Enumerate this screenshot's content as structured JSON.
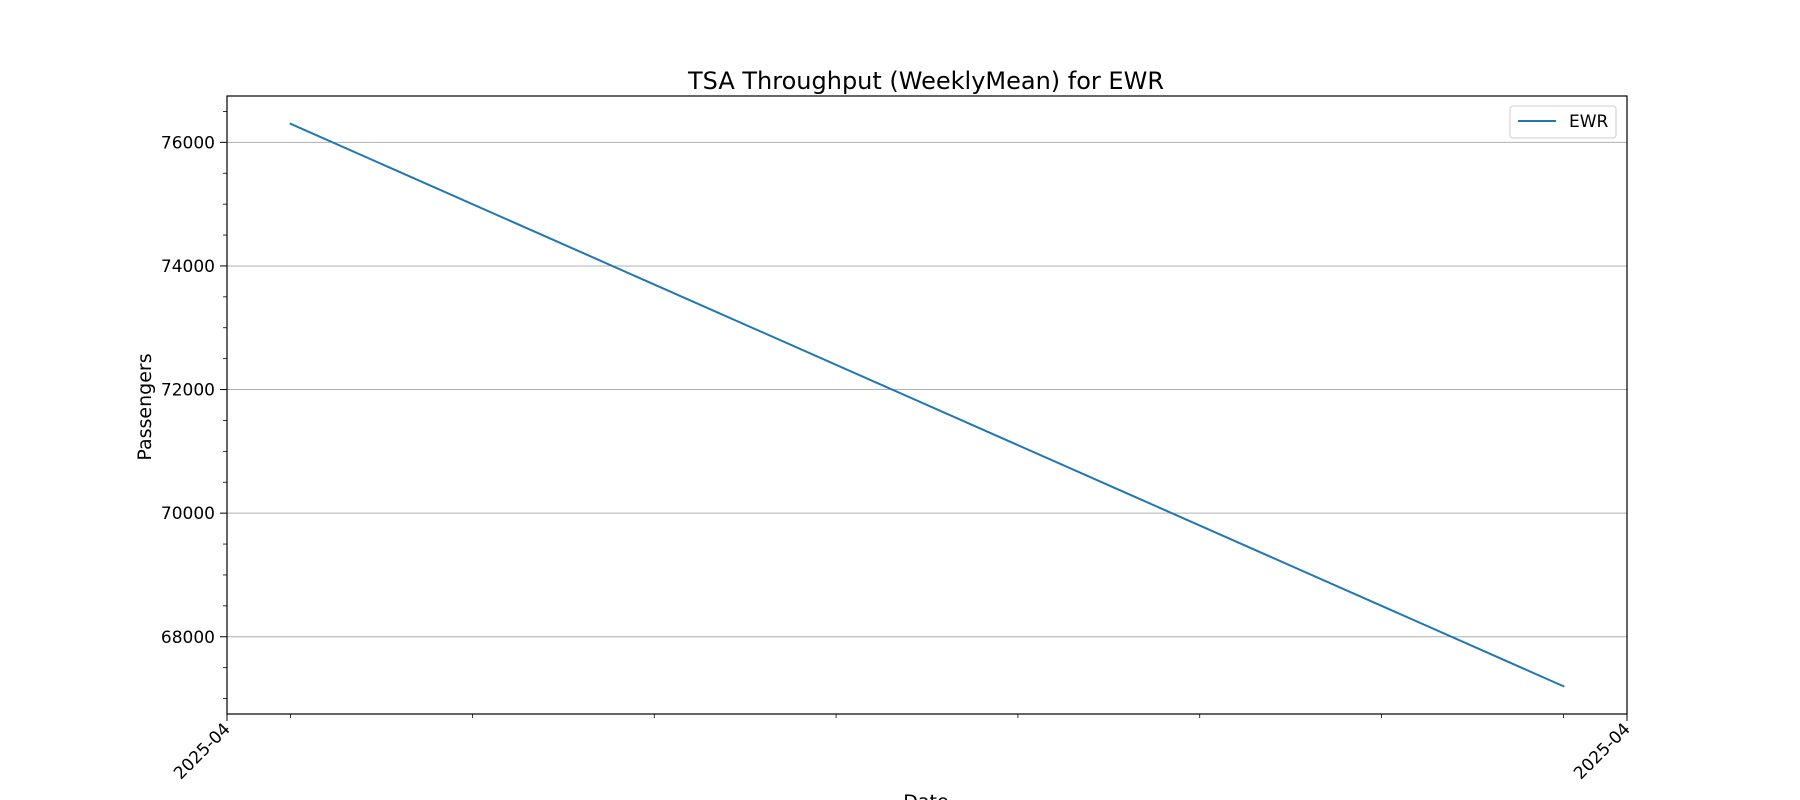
{
  "chart_data": {
    "type": "line",
    "title": "TSA Throughput (WeeklyMean) for EWR",
    "xlabel": "Date",
    "ylabel": "Passengers",
    "x_ticks": [
      "2025-04",
      "2025-04"
    ],
    "y_ticks": [
      68000,
      70000,
      72000,
      74000,
      76000
    ],
    "ylim": [
      66750,
      76750
    ],
    "grid": "horizontal",
    "legend_position": "top-right",
    "series": [
      {
        "name": "EWR",
        "color": "#1f77b4",
        "x": [
          "2025-04-06",
          "2025-04-13"
        ],
        "values": [
          76300,
          67200
        ]
      }
    ]
  }
}
